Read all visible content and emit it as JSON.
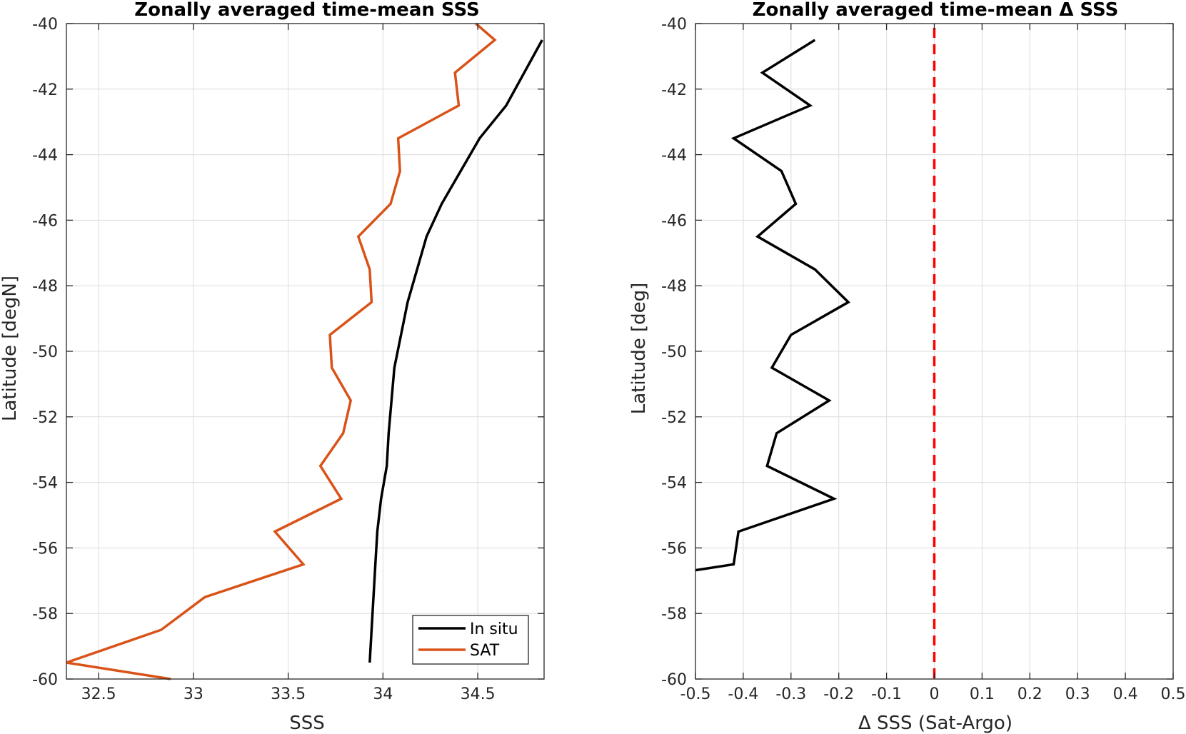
{
  "chart_data": [
    {
      "type": "line",
      "title": "Zonally averaged time-mean SSS",
      "xlabel": "SSS",
      "ylabel": "Latitude [degN]",
      "xlim": [
        32.33,
        34.85
      ],
      "ylim": [
        -60,
        -40
      ],
      "xticks": [
        32.5,
        33,
        33.5,
        34,
        34.5
      ],
      "xtick_labels": [
        "32.5",
        "33",
        "33.5",
        "34",
        "34.5"
      ],
      "yticks": [
        -60,
        -58,
        -56,
        -54,
        -52,
        -50,
        -48,
        -46,
        -44,
        -42,
        -40
      ],
      "ytick_labels": [
        "-60",
        "-58",
        "-56",
        "-54",
        "-52",
        "-50",
        "-48",
        "-46",
        "-44",
        "-42",
        "-40"
      ],
      "grid": true,
      "legend_position": "bottom-right",
      "series": [
        {
          "name": "In situ",
          "color": "#000000",
          "points": [
            [
              34.84,
              -40.5
            ],
            [
              34.65,
              -42.5
            ],
            [
              34.51,
              -43.5
            ],
            [
              34.31,
              -45.5
            ],
            [
              34.23,
              -46.5
            ],
            [
              34.13,
              -48.5
            ],
            [
              34.06,
              -50.5
            ],
            [
              34.03,
              -52.5
            ],
            [
              34.02,
              -53.5
            ],
            [
              33.99,
              -54.5
            ],
            [
              33.97,
              -55.5
            ],
            [
              33.96,
              -56.5
            ],
            [
              33.94,
              -58.5
            ],
            [
              33.93,
              -59.5
            ]
          ]
        },
        {
          "name": "SAT",
          "color": "#D95319",
          "points": [
            [
              34.49,
              -40.0
            ],
            [
              34.59,
              -40.5
            ],
            [
              34.38,
              -41.5
            ],
            [
              34.4,
              -42.5
            ],
            [
              34.08,
              -43.5
            ],
            [
              34.09,
              -44.5
            ],
            [
              34.04,
              -45.5
            ],
            [
              33.87,
              -46.5
            ],
            [
              33.93,
              -47.5
            ],
            [
              33.94,
              -48.5
            ],
            [
              33.72,
              -49.5
            ],
            [
              33.73,
              -50.5
            ],
            [
              33.83,
              -51.5
            ],
            [
              33.79,
              -52.5
            ],
            [
              33.67,
              -53.5
            ],
            [
              33.78,
              -54.5
            ],
            [
              33.43,
              -55.5
            ],
            [
              33.58,
              -56.5
            ],
            [
              33.06,
              -57.5
            ],
            [
              32.83,
              -58.5
            ],
            [
              32.33,
              -59.5
            ],
            [
              32.88,
              -60.0
            ]
          ]
        }
      ]
    },
    {
      "type": "line",
      "title": "Zonally averaged time-mean Δ SSS",
      "xlabel": "Δ SSS (Sat-Argo)",
      "ylabel": "Latitude [deg]",
      "xlim": [
        -0.5,
        0.5
      ],
      "ylim": [
        -60,
        -40
      ],
      "xticks": [
        -0.5,
        -0.4,
        -0.3,
        -0.2,
        -0.1,
        0,
        0.1,
        0.2,
        0.3,
        0.4,
        0.5
      ],
      "xtick_labels": [
        "-0.5",
        "-0.4",
        "-0.3",
        "-0.2",
        "-0.1",
        "0",
        "0.1",
        "0.2",
        "0.3",
        "0.4",
        "0.5"
      ],
      "yticks": [
        -60,
        -58,
        -56,
        -54,
        -52,
        -50,
        -48,
        -46,
        -44,
        -42,
        -40
      ],
      "ytick_labels": [
        "-60",
        "-58",
        "-56",
        "-54",
        "-52",
        "-50",
        "-48",
        "-46",
        "-44",
        "-42",
        "-40"
      ],
      "grid": true,
      "series": [
        {
          "color": "#000000",
          "points": [
            [
              -0.25,
              -40.5
            ],
            [
              -0.36,
              -41.5
            ],
            [
              -0.26,
              -42.5
            ],
            [
              -0.42,
              -43.5
            ],
            [
              -0.32,
              -44.5
            ],
            [
              -0.29,
              -45.5
            ],
            [
              -0.37,
              -46.5
            ],
            [
              -0.25,
              -47.5
            ],
            [
              -0.18,
              -48.5
            ],
            [
              -0.3,
              -49.5
            ],
            [
              -0.34,
              -50.5
            ],
            [
              -0.22,
              -51.5
            ],
            [
              -0.33,
              -52.5
            ],
            [
              -0.35,
              -53.5
            ],
            [
              -0.21,
              -54.5
            ],
            [
              -0.41,
              -55.5
            ],
            [
              -0.42,
              -56.5
            ],
            [
              -0.5,
              -56.68
            ]
          ]
        }
      ],
      "reference_line": {
        "x": 0,
        "color": "#FF0000",
        "style": "dashed"
      }
    }
  ]
}
